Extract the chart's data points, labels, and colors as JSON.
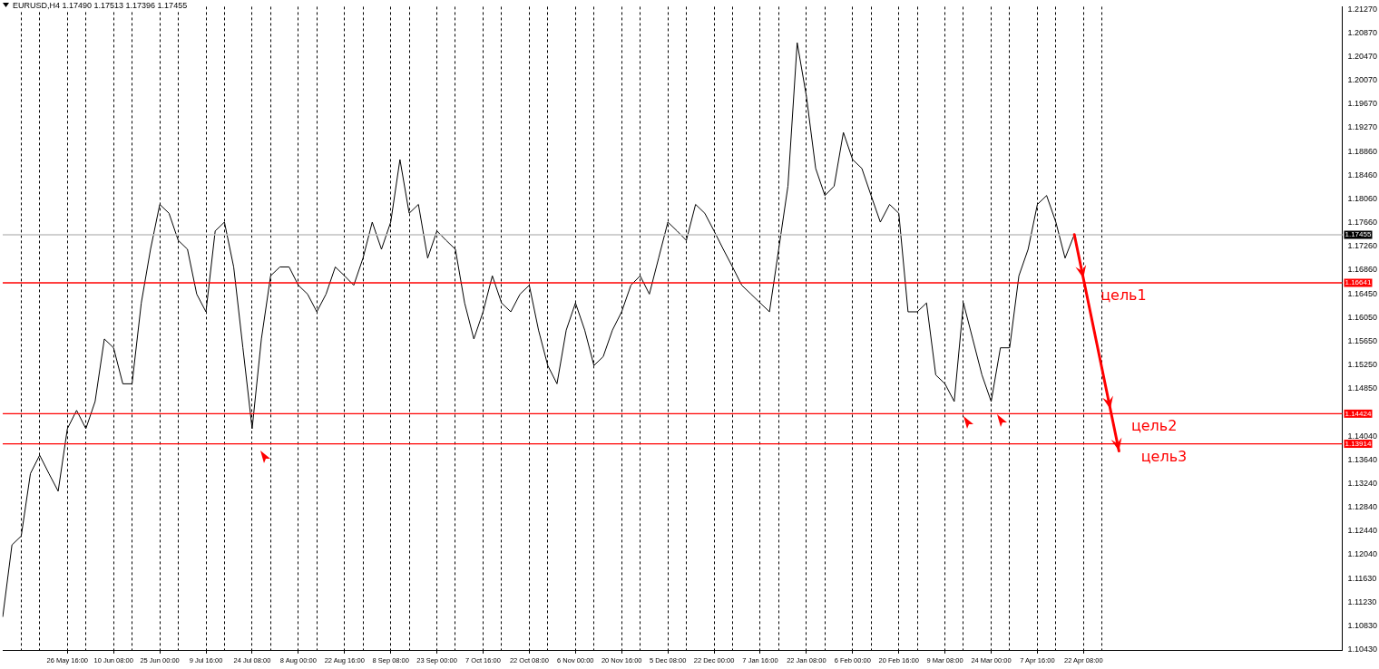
{
  "chart_data": {
    "type": "line",
    "title": "EURUSD,H4 1.17490 1.17513 1.17396 1.17455",
    "categories": [
      null,
      null,
      null,
      null,
      null,
      null,
      null,
      "26 May 16:00",
      null,
      null,
      null,
      null,
      "10 Jun 08:00",
      null,
      null,
      null,
      null,
      "25 Jun 00:00",
      null,
      null,
      null,
      null,
      "9 Jul 16:00",
      null,
      null,
      null,
      null,
      "24 Jul 08:00",
      null,
      null,
      null,
      null,
      "8 Aug 00:00",
      null,
      null,
      null,
      null,
      "22 Aug 16:00",
      null,
      null,
      null,
      null,
      "8 Sep 08:00",
      null,
      null,
      null,
      null,
      "23 Sep 00:00",
      null,
      null,
      null,
      null,
      "7 Oct 16:00",
      null,
      null,
      null,
      null,
      "22 Oct 08:00",
      null,
      null,
      null,
      null,
      "6 Nov 00:00",
      null,
      null,
      null,
      null,
      "20 Nov 16:00",
      null,
      null,
      null,
      null,
      "5 Dec 08:00",
      null,
      null,
      null,
      null,
      "22 Dec 00:00",
      null,
      null,
      null,
      null,
      "7 Jan 16:00",
      null,
      null,
      null,
      null,
      "22 Jan 08:00",
      null,
      null,
      null,
      null,
      "6 Feb 00:00",
      null,
      null,
      null,
      null,
      "20 Feb 16:00",
      null,
      null,
      null,
      null,
      "9 Mar 08:00",
      null,
      null,
      null,
      null,
      "24 Mar 00:00",
      null,
      null,
      null,
      null,
      "7 Apr 16:00",
      null,
      null,
      null,
      null,
      "22 Apr 08:00",
      null,
      null,
      null,
      null,
      null,
      null,
      null,
      null,
      null,
      null,
      null,
      null,
      null,
      null,
      null,
      null,
      null,
      null,
      null,
      null,
      null,
      null,
      null,
      null,
      null,
      null,
      null,
      null
    ],
    "series": [
      {
        "color": "#000000",
        "values": [
          1.1098,
          1.122,
          1.1235,
          1.1341,
          1.1372,
          1.1341,
          1.1311,
          1.1417,
          1.1448,
          1.1417,
          1.1463,
          1.1569,
          1.1554,
          1.1493,
          1.1493,
          1.163,
          1.1721,
          1.1797,
          1.1782,
          1.1736,
          1.1721,
          1.1645,
          1.1615,
          1.1752,
          1.1767,
          1.1691,
          1.1554,
          1.1417,
          1.1569,
          1.1676,
          1.1691,
          1.1691,
          1.166,
          1.1645,
          1.1615,
          1.1645,
          1.1691,
          1.1676,
          1.166,
          1.1706,
          1.1767,
          1.1721,
          1.1767,
          1.1873,
          1.1782,
          1.1797,
          1.1706,
          1.1752,
          1.1736,
          1.1721,
          1.163,
          1.1569,
          1.1615,
          1.1676,
          1.163,
          1.1615,
          1.1645,
          1.166,
          1.1584,
          1.1524,
          1.1493,
          1.1584,
          1.163,
          1.1584,
          1.1524,
          1.1539,
          1.1584,
          1.1615,
          1.166,
          1.1676,
          1.1645,
          1.1706,
          1.1767,
          1.1752,
          1.1736,
          1.1797,
          1.1782,
          1.1752,
          1.1721,
          1.1691,
          1.166,
          1.1645,
          1.163,
          1.1615,
          1.1721,
          1.1828,
          1.2071,
          1.198,
          1.1858,
          1.1812,
          1.1828,
          1.1919,
          1.1873,
          1.1858,
          1.1812,
          1.1767,
          1.1797,
          1.1782,
          1.1615,
          1.1615,
          1.163,
          1.1508,
          1.1493,
          1.1463,
          1.163,
          1.1569,
          1.1508,
          1.1463,
          1.1554,
          1.1554,
          1.1676,
          1.1721,
          1.1797,
          1.1812,
          1.1767,
          1.1706,
          1.1746,
          null,
          null,
          null,
          null,
          null,
          null,
          null,
          null,
          null,
          null,
          null,
          null,
          null,
          null,
          null,
          null,
          null,
          null,
          null,
          null,
          null,
          null,
          null,
          null,
          null,
          null,
          null,
          null,
          null
        ]
      }
    ],
    "ylim": [
      1.1042,
      1.2132
    ],
    "yticks": [
      {
        "value": 1.2127,
        "label": "1.21270"
      },
      {
        "value": 1.2087,
        "label": "1.20870"
      },
      {
        "value": 1.2047,
        "label": "1.20470"
      },
      {
        "value": 1.2007,
        "label": "1.20070"
      },
      {
        "value": 1.1967,
        "label": "1.19670"
      },
      {
        "value": 1.1927,
        "label": "1.19270"
      },
      {
        "value": 1.1886,
        "label": "1.18860"
      },
      {
        "value": 1.1846,
        "label": "1.18460"
      },
      {
        "value": 1.1806,
        "label": "1.18060"
      },
      {
        "value": 1.1766,
        "label": "1.17660"
      },
      {
        "value": 1.1726,
        "label": "1.17260"
      },
      {
        "value": 1.1686,
        "label": "1.16860"
      },
      {
        "value": 1.1645,
        "label": "1.16450"
      },
      {
        "value": 1.1605,
        "label": "1.16050"
      },
      {
        "value": 1.1565,
        "label": "1.15650"
      },
      {
        "value": 1.1525,
        "label": "1.15250"
      },
      {
        "value": 1.1485,
        "label": "1.14850"
      },
      {
        "value": 1.1404,
        "label": "1.14040"
      },
      {
        "value": 1.1364,
        "label": "1.13640"
      },
      {
        "value": 1.1324,
        "label": "1.13240"
      },
      {
        "value": 1.1284,
        "label": "1.12840"
      },
      {
        "value": 1.1244,
        "label": "1.12440"
      },
      {
        "value": 1.1204,
        "label": "1.12040"
      },
      {
        "value": 1.1163,
        "label": "1.11630"
      },
      {
        "value": 1.1123,
        "label": "1.11230"
      },
      {
        "value": 1.1083,
        "label": "1.10830"
      },
      {
        "value": 1.1043,
        "label": "1.10430"
      }
    ],
    "ref_lines": [
      {
        "axis": "y",
        "value": 1.17455,
        "label": "1.17455",
        "color": "#c0c0c0"
      },
      {
        "axis": "y",
        "value": 1.16641,
        "label": "1.16641",
        "color": "#ff0000"
      },
      {
        "axis": "y",
        "value": 1.14424,
        "label": "1.14424",
        "color": "#ff0000"
      },
      {
        "axis": "y",
        "value": 1.13914,
        "label": "1.13914",
        "color": "#ff0000"
      }
    ],
    "annotations": [
      {
        "text": "цель1",
        "y": 1.16641
      },
      {
        "text": "цель2",
        "y": 1.14424
      },
      {
        "text": "цель3",
        "y": 1.13914
      }
    ],
    "grid": "x",
    "legend": false,
    "marker": "none"
  }
}
